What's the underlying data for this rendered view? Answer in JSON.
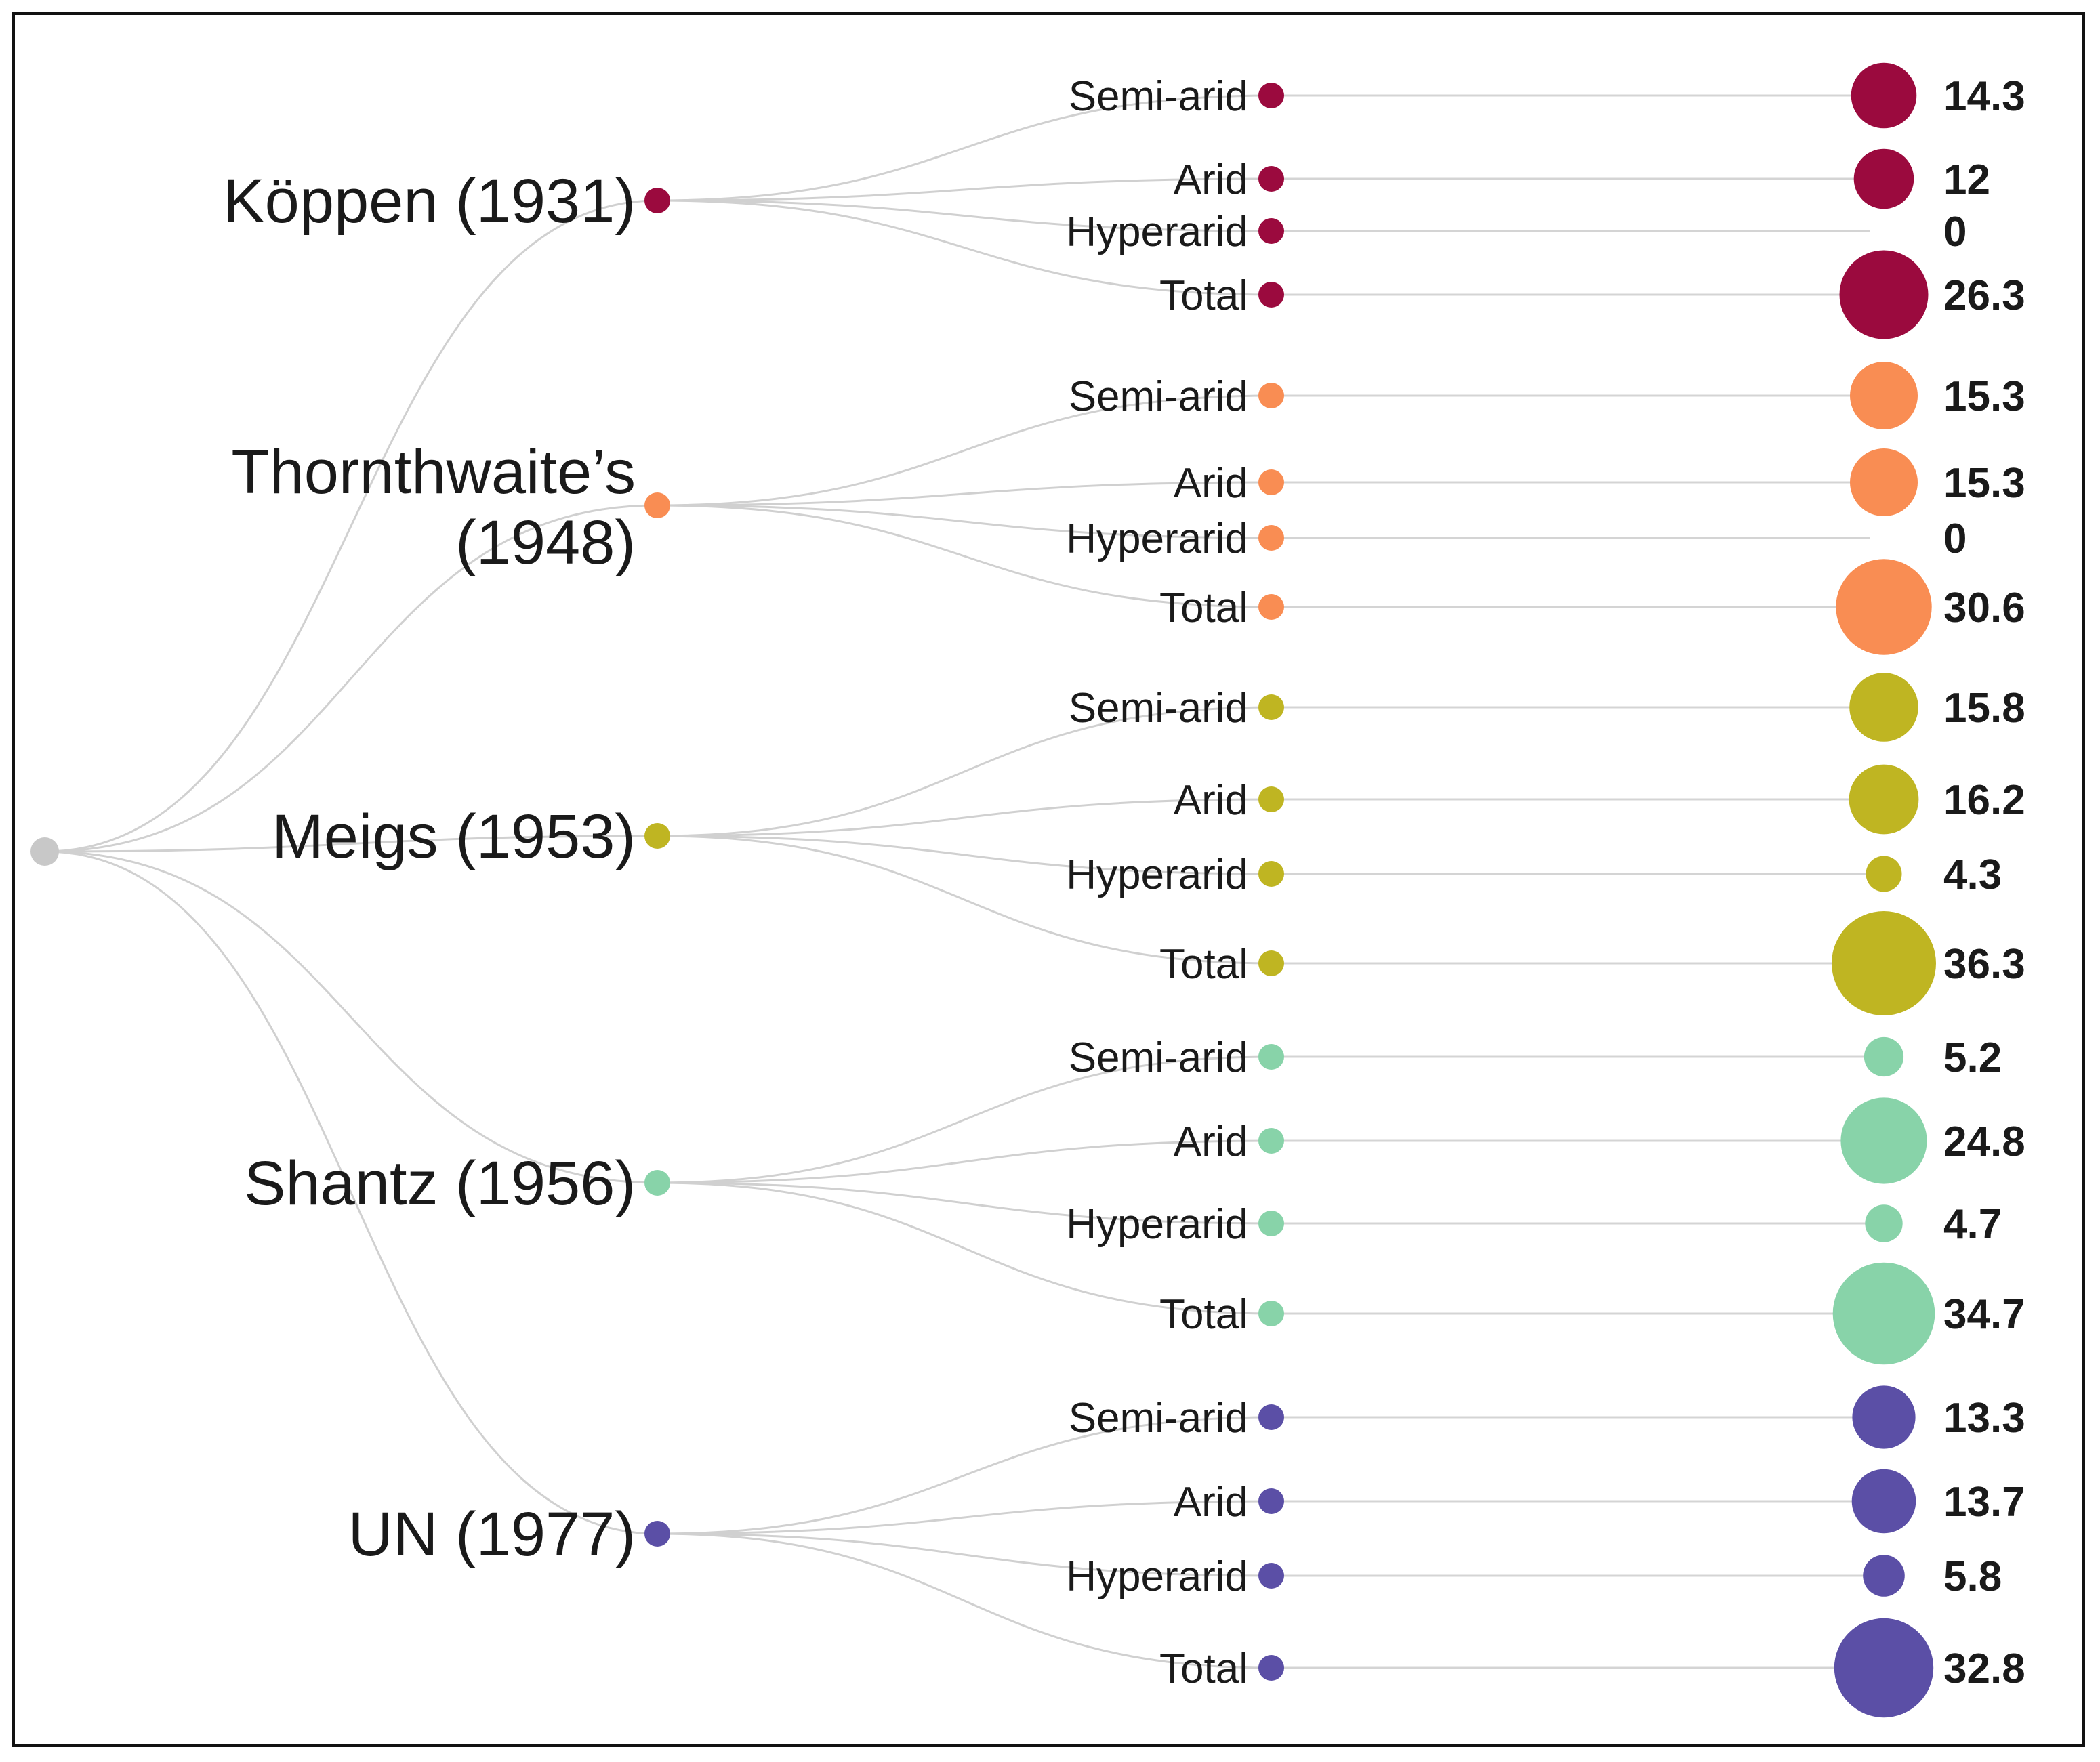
{
  "chart_data": {
    "type": "tree-bubble",
    "title": "",
    "root_color": "#c8c8c8",
    "value_scale_max": 36.3,
    "groups": [
      {
        "name": "Köppen (1931)",
        "label_lines": [
          "Köppen (1931)"
        ],
        "color": "#9b0a3e",
        "items": [
          {
            "category": "Semi-arid",
            "value": 14.3,
            "value_label": "14.3"
          },
          {
            "category": "Arid",
            "value": 12,
            "value_label": "12"
          },
          {
            "category": "Hyperarid",
            "value": 0,
            "value_label": "0"
          },
          {
            "category": "Total",
            "value": 26.3,
            "value_label": "26.3"
          }
        ]
      },
      {
        "name": "Thornthwaite’s (1948)",
        "label_lines": [
          "Thornthwaite’s",
          "(1948)"
        ],
        "color": "#f98d53",
        "items": [
          {
            "category": "Semi-arid",
            "value": 15.3,
            "value_label": "15.3"
          },
          {
            "category": "Arid",
            "value": 15.3,
            "value_label": "15.3"
          },
          {
            "category": "Hyperarid",
            "value": 0,
            "value_label": "0"
          },
          {
            "category": "Total",
            "value": 30.6,
            "value_label": "30.6"
          }
        ]
      },
      {
        "name": "Meigs (1953)",
        "label_lines": [
          "Meigs (1953)"
        ],
        "color": "#bfb522",
        "items": [
          {
            "category": "Semi-arid",
            "value": 15.8,
            "value_label": "15.8"
          },
          {
            "category": "Arid",
            "value": 16.2,
            "value_label": "16.2"
          },
          {
            "category": "Hyperarid",
            "value": 4.3,
            "value_label": "4.3"
          },
          {
            "category": "Total",
            "value": 36.3,
            "value_label": "36.3"
          }
        ]
      },
      {
        "name": "Shantz (1956)",
        "label_lines": [
          "Shantz (1956)"
        ],
        "color": "#88d3a9",
        "items": [
          {
            "category": "Semi-arid",
            "value": 5.2,
            "value_label": "5.2"
          },
          {
            "category": "Arid",
            "value": 24.8,
            "value_label": "24.8"
          },
          {
            "category": "Hyperarid",
            "value": 4.7,
            "value_label": "4.7"
          },
          {
            "category": "Total",
            "value": 34.7,
            "value_label": "34.7"
          }
        ]
      },
      {
        "name": "UN (1977)",
        "label_lines": [
          "UN (1977)"
        ],
        "color": "#5b4fa6",
        "items": [
          {
            "category": "Semi-arid",
            "value": 13.3,
            "value_label": "13.3"
          },
          {
            "category": "Arid",
            "value": 13.7,
            "value_label": "13.7"
          },
          {
            "category": "Hyperarid",
            "value": 5.8,
            "value_label": "5.8"
          },
          {
            "category": "Total",
            "value": 32.8,
            "value_label": "32.8"
          }
        ]
      }
    ]
  }
}
